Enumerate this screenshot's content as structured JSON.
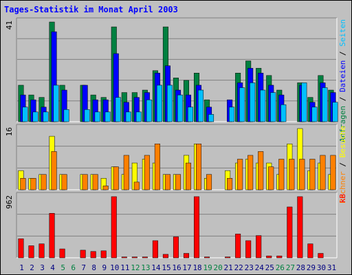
{
  "title": "Tages-Statistik im Monat April 2003",
  "colors": {
    "background": "#C0C0C0",
    "title": "#0000FF",
    "grid": "#808080",
    "weekday_label": "#000080",
    "weekend_label": "#008040",
    "anfragen": "#008040",
    "dateien": "#0000FF",
    "seiten": "#00C0FF",
    "besuche": "#FFFF00",
    "rechner": "#FF8000",
    "kb": "#FF0000"
  },
  "chart_data": [
    {
      "type": "bar",
      "panel": "top",
      "ymax_label": "41",
      "right_label": {
        "parts": [
          "Anfragen",
          "Dateien",
          "Seiten"
        ],
        "separator": "/"
      },
      "categories": [
        "1",
        "2",
        "3",
        "4",
        "5",
        "6",
        "7",
        "8",
        "9",
        "10",
        "11",
        "12",
        "13",
        "14",
        "15",
        "16",
        "17",
        "18",
        "19",
        "20",
        "21",
        "22",
        "23",
        "24",
        "25",
        "26",
        "27",
        "28",
        "29",
        "30",
        "31"
      ],
      "weekend_days": [
        5,
        6,
        12,
        13,
        19,
        20,
        26,
        27
      ],
      "ylim": [
        0,
        41
      ],
      "series": [
        {
          "name": "Anfragen",
          "color": "#008040",
          "values": [
            15,
            11,
            10,
            41,
            15,
            0,
            15,
            11,
            10,
            39,
            12,
            12,
            13,
            21,
            39,
            18,
            17,
            20,
            9,
            0,
            0,
            20,
            25,
            22,
            19,
            13,
            0,
            16,
            10,
            19,
            13
          ]
        },
        {
          "name": "Dateien",
          "color": "#0000FF",
          "values": [
            11,
            9,
            6,
            37,
            13,
            0,
            15,
            9,
            9,
            28,
            8,
            10,
            12,
            20,
            23,
            13,
            11,
            15,
            6,
            0,
            9,
            16,
            22,
            20,
            15,
            11,
            0,
            15,
            8,
            16,
            12
          ]
        },
        {
          "name": "Seiten",
          "color": "#00C0FF",
          "values": [
            6,
            4,
            4,
            15,
            5,
            0,
            5,
            4,
            4,
            10,
            4,
            4,
            9,
            15,
            15,
            11,
            6,
            13,
            3,
            0,
            6,
            14,
            16,
            13,
            12,
            7,
            0,
            16,
            6,
            14,
            8
          ]
        }
      ]
    },
    {
      "type": "bar",
      "panel": "middle",
      "ymax_label": "16",
      "right_label": {
        "parts": [
          "Rechner",
          "Besuche"
        ],
        "separator": "/"
      },
      "categories": [
        "1",
        "2",
        "3",
        "4",
        "5",
        "6",
        "7",
        "8",
        "9",
        "10",
        "11",
        "12",
        "13",
        "14",
        "15",
        "16",
        "17",
        "18",
        "19",
        "20",
        "21",
        "22",
        "23",
        "24",
        "25",
        "26",
        "27",
        "28",
        "29",
        "30",
        "31"
      ],
      "ylim": [
        0,
        16
      ],
      "series": [
        {
          "name": "Besuche",
          "color": "#FFFF00",
          "values": [
            5,
            3,
            4,
            14,
            4,
            0,
            4,
            4,
            3,
            6,
            4,
            7,
            8,
            7,
            4,
            4,
            9,
            12,
            3,
            0,
            5,
            7,
            8,
            7,
            7,
            4,
            12,
            16,
            5,
            7,
            4
          ]
        },
        {
          "name": "Rechner",
          "color": "#FF8000",
          "values": [
            3,
            3,
            4,
            10,
            4,
            0,
            4,
            4,
            1,
            6,
            9,
            2,
            9,
            12,
            4,
            4,
            7,
            12,
            4,
            0,
            3,
            8,
            9,
            10,
            6,
            8,
            8,
            8,
            8,
            9,
            9
          ]
        }
      ]
    },
    {
      "type": "bar",
      "panel": "bottom",
      "ymax_label": "962",
      "right_label": {
        "parts": [
          "kB"
        ],
        "separator": ""
      },
      "categories": [
        "1",
        "2",
        "3",
        "4",
        "5",
        "6",
        "7",
        "8",
        "9",
        "10",
        "11",
        "12",
        "13",
        "14",
        "15",
        "16",
        "17",
        "18",
        "19",
        "20",
        "21",
        "22",
        "23",
        "24",
        "25",
        "26",
        "27",
        "28",
        "29",
        "30",
        "31"
      ],
      "ylim": [
        0,
        962
      ],
      "series": [
        {
          "name": "kB",
          "color": "#FF0000",
          "values": [
            300,
            190,
            220,
            700,
            140,
            0,
            120,
            100,
            110,
            962,
            14,
            14,
            14,
            270,
            55,
            330,
            70,
            962,
            14,
            0,
            14,
            375,
            270,
            350,
            30,
            30,
            800,
            962,
            220,
            70,
            0
          ]
        }
      ]
    }
  ]
}
